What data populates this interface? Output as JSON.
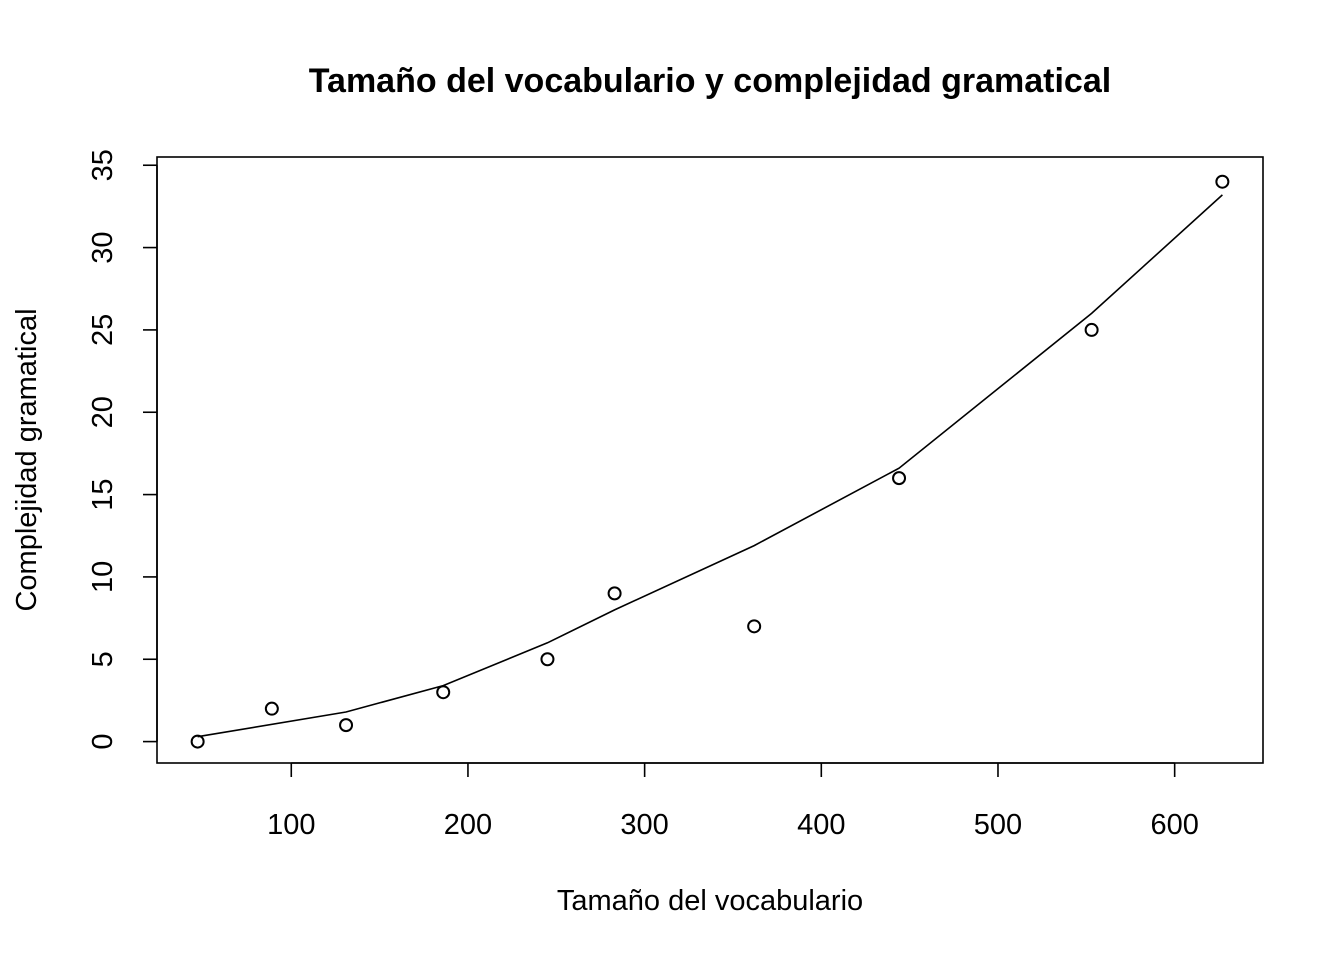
{
  "chart_data": {
    "type": "scatter",
    "title": "Tamaño del vocabulario y complejidad gramatical",
    "xlabel": "Tamaño del vocabulario",
    "ylabel": "Complejidad gramatical",
    "xlim": [
      24,
      650
    ],
    "ylim": [
      -1.3,
      35.5
    ],
    "x_ticks": [
      100,
      200,
      300,
      400,
      500,
      600
    ],
    "y_ticks": [
      0,
      5,
      10,
      15,
      20,
      25,
      30,
      35
    ],
    "grid": false,
    "points": {
      "x": [
        47,
        89,
        131,
        186,
        245,
        283,
        362,
        444,
        553,
        627
      ],
      "y": [
        0,
        2,
        1,
        3,
        5,
        9,
        7,
        16,
        25,
        34
      ]
    },
    "fit_line": {
      "x": [
        47,
        131,
        186,
        245,
        283,
        362,
        444,
        553,
        627
      ],
      "y": [
        0.3,
        1.8,
        3.4,
        6.0,
        8.0,
        11.9,
        16.6,
        26.0,
        33.2
      ]
    }
  }
}
